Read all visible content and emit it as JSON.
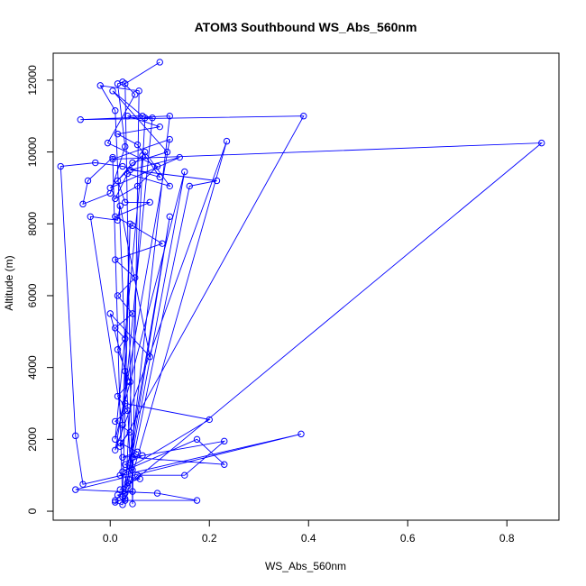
{
  "chart_data": {
    "type": "line",
    "title": "ATOM3 Southbound WS_Abs_560nm",
    "xlabel": "WS_Abs_560nm",
    "ylabel": "Altitude (m)",
    "xlim": [
      -0.115,
      0.905
    ],
    "ylim": [
      -250,
      12750
    ],
    "x_ticks": [
      0.0,
      0.2,
      0.4,
      0.6,
      0.8
    ],
    "x_tick_labels": [
      "0.0",
      "0.2",
      "0.4",
      "0.6",
      "0.8"
    ],
    "y_ticks": [
      0,
      2000,
      4000,
      6000,
      8000,
      10000,
      12000
    ],
    "y_tick_labels": [
      "0",
      "2000",
      "4000",
      "6000",
      "8000",
      "10000",
      "12000"
    ],
    "grid": false,
    "legend": "none",
    "series_color": "#0000ff",
    "markers": "open-circle",
    "points": [
      [
        0.1,
        12500
      ],
      [
        0.03,
        11900
      ],
      [
        0.045,
        200
      ],
      [
        0.058,
        11700
      ],
      [
        -0.02,
        11850
      ],
      [
        0.01,
        11150
      ],
      [
        0.04,
        1350
      ],
      [
        0.12,
        11000
      ],
      [
        -0.06,
        10900
      ],
      [
        0.39,
        11000
      ],
      [
        0.02,
        1800
      ],
      [
        0.085,
        10950
      ],
      [
        0.07,
        10950
      ],
      [
        0.03,
        300
      ],
      [
        0.235,
        10300
      ],
      [
        0.01,
        1700
      ],
      [
        0.12,
        10350
      ],
      [
        0.005,
        9800
      ],
      [
        0.87,
        10250
      ],
      [
        0.035,
        700
      ],
      [
        0.16,
        9050
      ],
      [
        0.215,
        9200
      ],
      [
        0.04,
        9500
      ],
      [
        0.14,
        9850
      ],
      [
        0.0,
        9000
      ],
      [
        0.065,
        9900
      ],
      [
        0.01,
        2000
      ],
      [
        0.15,
        9450
      ],
      [
        0.03,
        500
      ],
      [
        0.12,
        8200
      ],
      [
        0.025,
        400
      ],
      [
        0.04,
        8000
      ],
      [
        0.025,
        2400
      ],
      [
        -0.04,
        8200
      ],
      [
        0.015,
        8100
      ],
      [
        0.02,
        8500
      ],
      [
        0.08,
        4300
      ],
      [
        0.0,
        5500
      ],
      [
        0.03,
        3900
      ],
      [
        0.03,
        3000
      ],
      [
        0.2,
        2550
      ],
      [
        0.025,
        1100
      ],
      [
        0.175,
        2000
      ],
      [
        0.23,
        1300
      ],
      [
        0.045,
        1500
      ],
      [
        0.23,
        1950
      ],
      [
        0.15,
        1000
      ],
      [
        0.055,
        1000
      ],
      [
        0.01,
        300
      ],
      [
        0.175,
        300
      ],
      [
        0.095,
        500
      ],
      [
        -0.07,
        600
      ],
      [
        0.385,
        2150
      ],
      [
        -0.055,
        750
      ],
      [
        -0.07,
        2100
      ],
      [
        -0.1,
        9600
      ],
      [
        -0.03,
        9700
      ],
      [
        0.025,
        9600
      ],
      [
        0.1,
        9300
      ],
      [
        0.055,
        10200
      ],
      [
        0.015,
        10500
      ],
      [
        0.1,
        10700
      ],
      [
        0.035,
        11000
      ],
      [
        0.065,
        11000
      ],
      [
        0.005,
        11700
      ],
      [
        0.115,
        10000
      ],
      [
        0.045,
        9700
      ],
      [
        0.015,
        9200
      ],
      [
        0.03,
        8600
      ],
      [
        0.08,
        8600
      ],
      [
        0.01,
        8200
      ],
      [
        0.045,
        7950
      ],
      [
        0.105,
        7450
      ],
      [
        0.01,
        7000
      ],
      [
        0.05,
        6500
      ],
      [
        0.015,
        6000
      ],
      [
        0.045,
        5500
      ],
      [
        0.01,
        5100
      ],
      [
        0.03,
        4800
      ],
      [
        0.015,
        4500
      ],
      [
        0.04,
        3600
      ],
      [
        0.015,
        3200
      ],
      [
        0.035,
        2800
      ],
      [
        0.01,
        2500
      ],
      [
        0.04,
        2200
      ],
      [
        0.02,
        1900
      ],
      [
        0.055,
        1650
      ],
      [
        0.025,
        1500
      ],
      [
        0.065,
        1550
      ],
      [
        0.03,
        1300
      ],
      [
        0.045,
        1150
      ],
      [
        0.02,
        1000
      ],
      [
        0.06,
        900
      ],
      [
        0.035,
        800
      ],
      [
        0.02,
        600
      ],
      [
        0.045,
        550
      ],
      [
        0.015,
        450
      ],
      [
        0.03,
        350
      ],
      [
        0.01,
        250
      ],
      [
        0.025,
        180
      ],
      [
        0.005,
        9850
      ],
      [
        -0.045,
        9200
      ],
      [
        -0.055,
        8550
      ],
      [
        0.0,
        8850
      ],
      [
        0.03,
        10150
      ],
      [
        0.015,
        11900
      ],
      [
        0.025,
        11950
      ],
      [
        0.05,
        11600
      ],
      [
        -0.005,
        10250
      ],
      [
        0.095,
        9600
      ],
      [
        0.055,
        9050
      ],
      [
        0.01,
        8700
      ],
      [
        0.035,
        9400
      ],
      [
        0.12,
        9050
      ],
      [
        0.07,
        10000
      ]
    ]
  }
}
